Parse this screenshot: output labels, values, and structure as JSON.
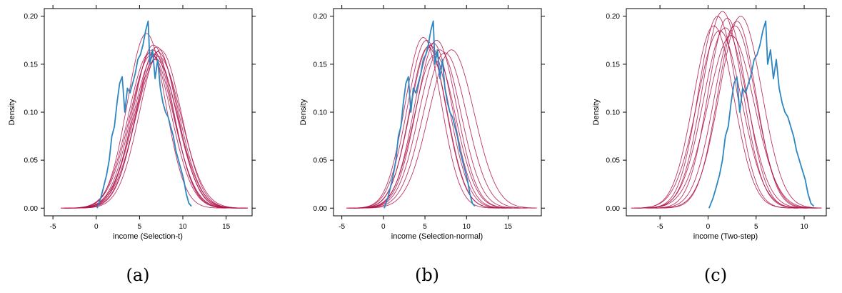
{
  "colors": {
    "observed": "#2e86c1",
    "replicated": "#b0124a",
    "frame": "#000000"
  },
  "chart_data": [
    {
      "type": "line",
      "panel_label": "(a)",
      "xlabel": "income (Selection-t)",
      "ylabel": "Density",
      "xlim": [
        -6,
        18
      ],
      "ylim": [
        -0.008,
        0.208
      ],
      "xticks": [
        -5,
        0,
        5,
        10,
        15
      ],
      "yticks": [
        0.0,
        0.05,
        0.1,
        0.15,
        0.2
      ],
      "ytick_labels": [
        "0.00",
        "0.05",
        "0.10",
        "0.15",
        "0.20"
      ],
      "grid": false,
      "legend": "none",
      "observed": {
        "x": [
          0.1,
          0.5,
          0.8,
          1.2,
          1.5,
          1.8,
          2.1,
          2.4,
          2.7,
          3.0,
          3.3,
          3.6,
          3.9,
          4.2,
          4.5,
          4.8,
          5.1,
          5.4,
          5.7,
          6.0,
          6.2,
          6.5,
          6.8,
          7.1,
          7.4,
          7.7,
          8.0,
          8.3,
          8.6,
          8.9,
          9.2,
          9.5,
          9.8,
          10.1,
          10.4,
          10.7,
          11.0
        ],
        "y": [
          0.0,
          0.01,
          0.02,
          0.035,
          0.05,
          0.075,
          0.085,
          0.11,
          0.13,
          0.137,
          0.1,
          0.125,
          0.12,
          0.13,
          0.14,
          0.155,
          0.16,
          0.17,
          0.185,
          0.195,
          0.15,
          0.165,
          0.135,
          0.155,
          0.125,
          0.11,
          0.1,
          0.095,
          0.085,
          0.075,
          0.06,
          0.05,
          0.04,
          0.03,
          0.015,
          0.005,
          0.002
        ]
      },
      "replicates": [
        {
          "mean": 6.5,
          "sd": 2.4,
          "peak": 0.165
        },
        {
          "mean": 6.8,
          "sd": 2.5,
          "peak": 0.16
        },
        {
          "mean": 7.0,
          "sd": 2.35,
          "peak": 0.168
        },
        {
          "mean": 6.2,
          "sd": 2.45,
          "peak": 0.162
        },
        {
          "mean": 7.2,
          "sd": 2.6,
          "peak": 0.158
        },
        {
          "mean": 6.6,
          "sd": 2.3,
          "peak": 0.17
        },
        {
          "mean": 5.8,
          "sd": 2.2,
          "peak": 0.182
        },
        {
          "mean": 7.4,
          "sd": 2.4,
          "peak": 0.165
        },
        {
          "mean": 6.9,
          "sd": 2.55,
          "peak": 0.155
        },
        {
          "mean": 6.4,
          "sd": 2.5,
          "peak": 0.16
        },
        {
          "mean": 7.1,
          "sd": 2.45,
          "peak": 0.163
        }
      ]
    },
    {
      "type": "line",
      "panel_label": "(b)",
      "xlabel": "income (Selection-normal)",
      "ylabel": "Density",
      "xlim": [
        -6,
        19
      ],
      "ylim": [
        -0.008,
        0.208
      ],
      "xticks": [
        -5,
        0,
        5,
        10,
        15
      ],
      "yticks": [
        0.0,
        0.05,
        0.1,
        0.15,
        0.2
      ],
      "ytick_labels": [
        "0.00",
        "0.05",
        "0.10",
        "0.15",
        "0.20"
      ],
      "grid": false,
      "legend": "none",
      "observed": {
        "x": [
          0.1,
          0.5,
          0.8,
          1.2,
          1.5,
          1.8,
          2.1,
          2.4,
          2.7,
          3.0,
          3.3,
          3.6,
          3.9,
          4.2,
          4.5,
          4.8,
          5.1,
          5.4,
          5.7,
          6.0,
          6.2,
          6.5,
          6.8,
          7.1,
          7.4,
          7.7,
          8.0,
          8.3,
          8.6,
          8.9,
          9.2,
          9.5,
          9.8,
          10.1,
          10.4,
          10.7,
          11.0
        ],
        "y": [
          0.0,
          0.01,
          0.02,
          0.035,
          0.05,
          0.075,
          0.085,
          0.11,
          0.13,
          0.137,
          0.1,
          0.125,
          0.12,
          0.13,
          0.14,
          0.155,
          0.16,
          0.17,
          0.185,
          0.195,
          0.15,
          0.165,
          0.135,
          0.155,
          0.125,
          0.11,
          0.1,
          0.095,
          0.085,
          0.075,
          0.06,
          0.05,
          0.04,
          0.03,
          0.015,
          0.005,
          0.002
        ]
      },
      "replicates": [
        {
          "mean": 4.8,
          "sd": 2.2,
          "peak": 0.178
        },
        {
          "mean": 5.2,
          "sd": 2.3,
          "peak": 0.175
        },
        {
          "mean": 5.6,
          "sd": 2.35,
          "peak": 0.17
        },
        {
          "mean": 6.0,
          "sd": 2.3,
          "peak": 0.172
        },
        {
          "mean": 6.4,
          "sd": 2.4,
          "peak": 0.175
        },
        {
          "mean": 6.8,
          "sd": 2.5,
          "peak": 0.165
        },
        {
          "mean": 7.4,
          "sd": 2.6,
          "peak": 0.162
        },
        {
          "mean": 8.2,
          "sd": 2.7,
          "peak": 0.165
        },
        {
          "mean": 5.4,
          "sd": 2.25,
          "peak": 0.168
        },
        {
          "mean": 6.2,
          "sd": 2.45,
          "peak": 0.16
        }
      ]
    },
    {
      "type": "line",
      "panel_label": "(c)",
      "xlabel": "income (Two-step)",
      "ylabel": "Density",
      "xlim": [
        -8.5,
        12.3
      ],
      "ylim": [
        -0.008,
        0.208
      ],
      "xticks": [
        -5,
        0,
        5,
        10
      ],
      "yticks": [
        0.0,
        0.05,
        0.1,
        0.15,
        0.2
      ],
      "ytick_labels": [
        "0.00",
        "0.05",
        "0.10",
        "0.15",
        "0.20"
      ],
      "grid": false,
      "legend": "none",
      "observed": {
        "x": [
          0.1,
          0.5,
          0.8,
          1.2,
          1.5,
          1.8,
          2.1,
          2.4,
          2.7,
          3.0,
          3.3,
          3.6,
          3.9,
          4.2,
          4.5,
          4.8,
          5.1,
          5.4,
          5.7,
          6.0,
          6.2,
          6.5,
          6.8,
          7.1,
          7.4,
          7.7,
          8.0,
          8.3,
          8.6,
          8.9,
          9.2,
          9.5,
          9.8,
          10.1,
          10.4,
          10.7,
          11.0
        ],
        "y": [
          0.0,
          0.01,
          0.02,
          0.035,
          0.05,
          0.075,
          0.085,
          0.11,
          0.13,
          0.137,
          0.1,
          0.125,
          0.12,
          0.13,
          0.14,
          0.155,
          0.16,
          0.17,
          0.185,
          0.195,
          0.15,
          0.165,
          0.135,
          0.155,
          0.125,
          0.11,
          0.1,
          0.095,
          0.085,
          0.075,
          0.06,
          0.05,
          0.04,
          0.03,
          0.015,
          0.005,
          0.002
        ]
      },
      "replicates": [
        {
          "mean": 1.0,
          "sd": 2.0,
          "peak": 0.2
        },
        {
          "mean": 1.5,
          "sd": 2.1,
          "peak": 0.205
        },
        {
          "mean": 2.0,
          "sd": 2.0,
          "peak": 0.198
        },
        {
          "mean": 2.8,
          "sd": 2.15,
          "peak": 0.19
        },
        {
          "mean": 3.4,
          "sd": 2.2,
          "peak": 0.2
        },
        {
          "mean": 1.2,
          "sd": 2.3,
          "peak": 0.185
        },
        {
          "mean": 0.6,
          "sd": 2.1,
          "peak": 0.19
        },
        {
          "mean": 2.4,
          "sd": 2.4,
          "peak": 0.18
        },
        {
          "mean": 3.0,
          "sd": 2.0,
          "peak": 0.195
        },
        {
          "mean": 1.8,
          "sd": 2.25,
          "peak": 0.188
        }
      ]
    }
  ]
}
